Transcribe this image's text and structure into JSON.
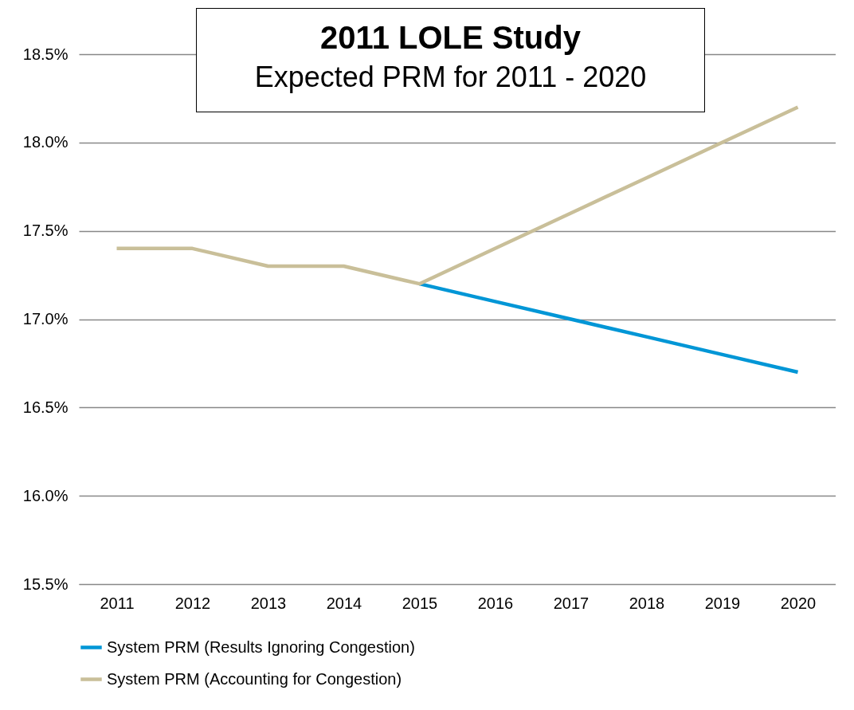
{
  "chart_data": {
    "type": "line",
    "title": "2011 LOLE Study",
    "subtitle": "Expected PRM for 2011 - 2020",
    "categories": [
      "2011",
      "2012",
      "2013",
      "2014",
      "2015",
      "2016",
      "2017",
      "2018",
      "2019",
      "2020"
    ],
    "series": [
      {
        "name": "System PRM (Results Ignoring Congestion)",
        "color": "#0096d6",
        "values": [
          null,
          null,
          null,
          null,
          17.2,
          17.1,
          17.0,
          16.9,
          16.8,
          16.7
        ]
      },
      {
        "name": "System PRM (Accounting for Congestion)",
        "color": "#c9bf99",
        "values": [
          17.4,
          17.4,
          17.3,
          17.3,
          17.2,
          17.4,
          17.6,
          17.8,
          18.0,
          18.2
        ]
      }
    ],
    "ylim": [
      15.5,
      18.5
    ],
    "yticks": [
      {
        "value": 15.5,
        "label": "15.5%"
      },
      {
        "value": 16.0,
        "label": "16.0%"
      },
      {
        "value": 16.5,
        "label": "16.5%"
      },
      {
        "value": 17.0,
        "label": "17.0%"
      },
      {
        "value": 17.5,
        "label": "17.5%"
      },
      {
        "value": 18.0,
        "label": "18.0%"
      },
      {
        "value": 18.5,
        "label": "18.5%"
      }
    ],
    "grid": "y",
    "legend": "bottom",
    "line_style": "solid"
  }
}
